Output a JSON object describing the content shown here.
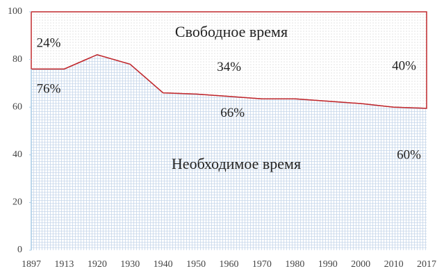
{
  "chart_data": {
    "type": "stacked_area",
    "categories": [
      "1897",
      "1913",
      "1920",
      "1930",
      "1940",
      "1950",
      "1960",
      "1970",
      "1980",
      "1990",
      "2000",
      "2010",
      "2017"
    ],
    "series": [
      {
        "name": "Необходимое время",
        "color": "#c6d6ea",
        "values": [
          76,
          76,
          82,
          78,
          66,
          65.5,
          64.5,
          63.5,
          63.5,
          62.5,
          61.5,
          60,
          59.5
        ],
        "value_labels": [
          "76%",
          null,
          null,
          null,
          "66%",
          null,
          null,
          null,
          null,
          null,
          null,
          "60%",
          null
        ]
      },
      {
        "name": "Свободное время",
        "color": "#cfcfcf",
        "values": [
          24,
          24,
          18,
          22,
          34,
          34.5,
          35.5,
          36.5,
          36.5,
          37.5,
          38.5,
          40,
          40.5
        ],
        "value_labels": [
          "24%",
          null,
          null,
          null,
          "34%",
          null,
          null,
          null,
          null,
          null,
          null,
          "40%",
          null
        ]
      }
    ],
    "edge_color": "#c0282d",
    "ylim": [
      0,
      100
    ],
    "yticks": [
      0,
      20,
      40,
      60,
      80,
      100
    ]
  }
}
